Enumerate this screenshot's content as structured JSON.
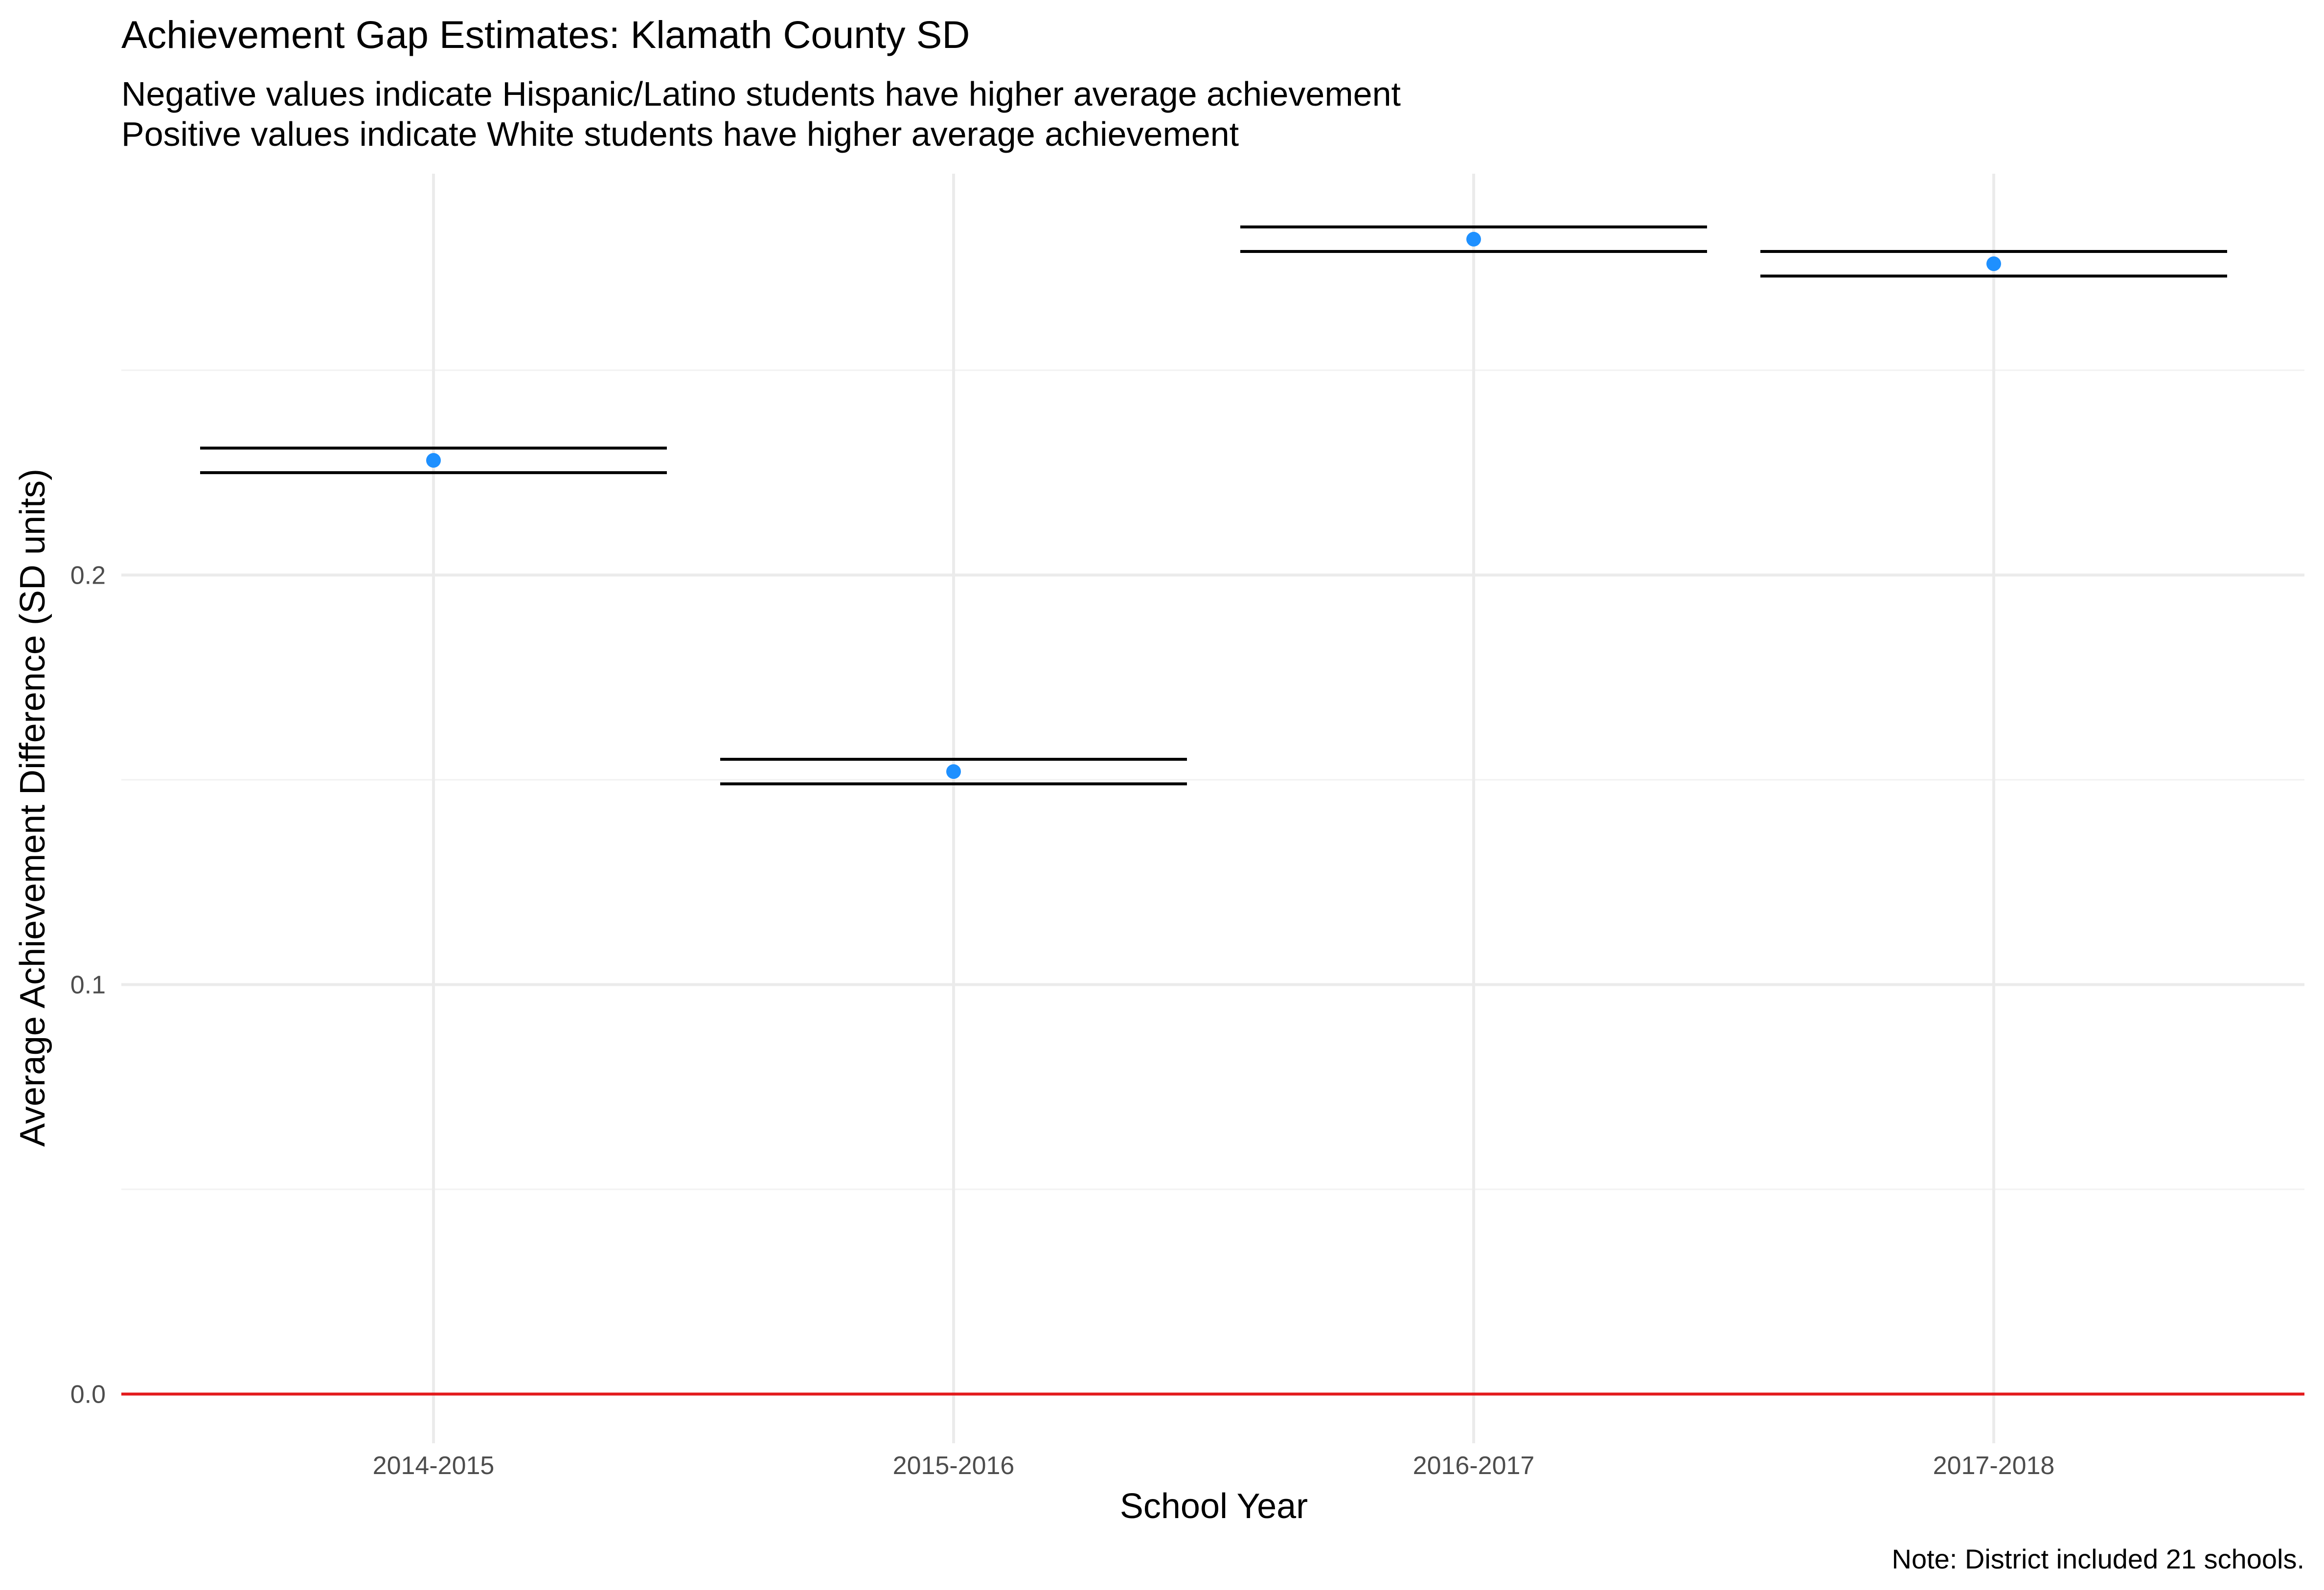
{
  "chart_data": {
    "type": "scatter",
    "title": "Achievement Gap Estimates: Klamath County SD",
    "subtitle_lines": [
      "Negative values indicate Hispanic/Latino students have higher average achievement",
      "Positive values indicate White students have higher average achievement"
    ],
    "xlabel": "School Year",
    "ylabel": "Average Achievement Difference (SD units)",
    "caption": "Note: District included 21 schools.",
    "categories": [
      "2014-2015",
      "2015-2016",
      "2016-2017",
      "2017-2018"
    ],
    "values": [
      0.228,
      0.152,
      0.282,
      0.276
    ],
    "error_bars": {
      "lower": [
        0.225,
        0.149,
        0.279,
        0.273
      ],
      "upper": [
        0.231,
        0.155,
        0.285,
        0.279
      ]
    },
    "y_ticks": [
      0.0,
      0.1,
      0.2
    ],
    "y_tick_labels": [
      "0.0",
      "0.1",
      "0.2"
    ],
    "ylim": [
      -0.012,
      0.298
    ],
    "reference_line": {
      "y": 0.0,
      "color": "#e31a1c"
    },
    "point_color": "#1e90ff",
    "errorbar_color": "#000000",
    "grid_major_color": "#ebebeb",
    "grid_minor_color": "#f2f2f2",
    "grid": true,
    "legend": "none"
  }
}
